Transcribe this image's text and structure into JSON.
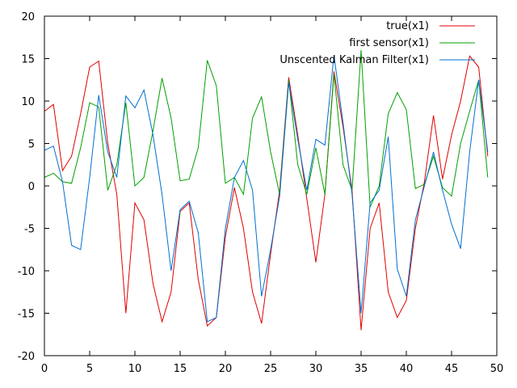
{
  "chart_data": {
    "type": "line",
    "title": "",
    "xlabel": "",
    "ylabel": "",
    "xlim": [
      0,
      50
    ],
    "ylim": [
      -20,
      20
    ],
    "xticks": [
      0,
      5,
      10,
      15,
      20,
      25,
      30,
      35,
      40,
      45,
      50
    ],
    "yticks": [
      -20,
      -15,
      -10,
      -5,
      0,
      5,
      10,
      15,
      20
    ],
    "grid": false,
    "legend_position": "top-right",
    "x": [
      0,
      1,
      2,
      3,
      4,
      5,
      6,
      7,
      8,
      9,
      10,
      11,
      12,
      13,
      14,
      15,
      16,
      17,
      18,
      19,
      20,
      21,
      22,
      23,
      24,
      25,
      26,
      27,
      28,
      29,
      30,
      31,
      32,
      33,
      34,
      35,
      36,
      37,
      38,
      39,
      40,
      41,
      42,
      43,
      44,
      45,
      46,
      47,
      48,
      49
    ],
    "series": [
      {
        "name": "true(x1)",
        "color": "#e00000",
        "values": [
          8.8,
          9.6,
          1.8,
          3.5,
          8.5,
          14.0,
          14.7,
          5.0,
          -1.0,
          -15.0,
          -2.0,
          -4.0,
          -11.5,
          -16.0,
          -12.5,
          -3.0,
          -2.0,
          -11.0,
          -16.5,
          -15.5,
          -6.0,
          -0.2,
          -5.0,
          -12.5,
          -16.2,
          -8.0,
          -0.5,
          12.8,
          6.0,
          -1.5,
          -9.0,
          -1.0,
          13.5,
          7.0,
          -0.5,
          -17.0,
          -5.0,
          -2.0,
          -12.5,
          -15.5,
          -13.5,
          -5.0,
          0.5,
          8.3,
          0.8,
          6.0,
          10.0,
          15.3,
          14.0,
          3.5
        ]
      },
      {
        "name": "first sensor(x1)",
        "color": "#00a000",
        "values": [
          1.0,
          1.5,
          0.5,
          0.3,
          4.5,
          9.8,
          9.3,
          -0.5,
          2.5,
          9.8,
          0.0,
          1.0,
          6.5,
          12.7,
          8.0,
          0.6,
          0.8,
          4.5,
          14.8,
          11.8,
          0.3,
          1.0,
          -1.0,
          8.0,
          10.5,
          4.0,
          -1.0,
          12.5,
          2.5,
          -1.0,
          4.5,
          -1.0,
          13.2,
          2.5,
          -0.5,
          16.0,
          -2.5,
          0.0,
          8.5,
          11.0,
          9.0,
          -0.3,
          0.2,
          3.5,
          -0.2,
          -1.2,
          5.0,
          8.8,
          12.5,
          1.0
        ]
      },
      {
        "name": "Unscented Kalman Filter(x1)",
        "color": "#0070d0",
        "values": [
          4.2,
          4.7,
          0.5,
          -7.0,
          -7.5,
          1.0,
          10.7,
          4.0,
          1.0,
          10.6,
          9.2,
          11.3,
          6.0,
          -1.0,
          -10.0,
          -2.8,
          -1.8,
          -5.5,
          -16.0,
          -15.5,
          -5.0,
          1.0,
          3.0,
          -0.5,
          -13.0,
          -7.5,
          -1.2,
          12.2,
          5.5,
          -0.5,
          5.5,
          4.8,
          15.4,
          7.5,
          -1.0,
          -15.0,
          -2.0,
          -0.5,
          5.8,
          -9.8,
          -13.0,
          -4.0,
          0.0,
          4.0,
          -0.5,
          -4.5,
          -7.4,
          4.0,
          12.5,
          4.0
        ]
      }
    ]
  }
}
